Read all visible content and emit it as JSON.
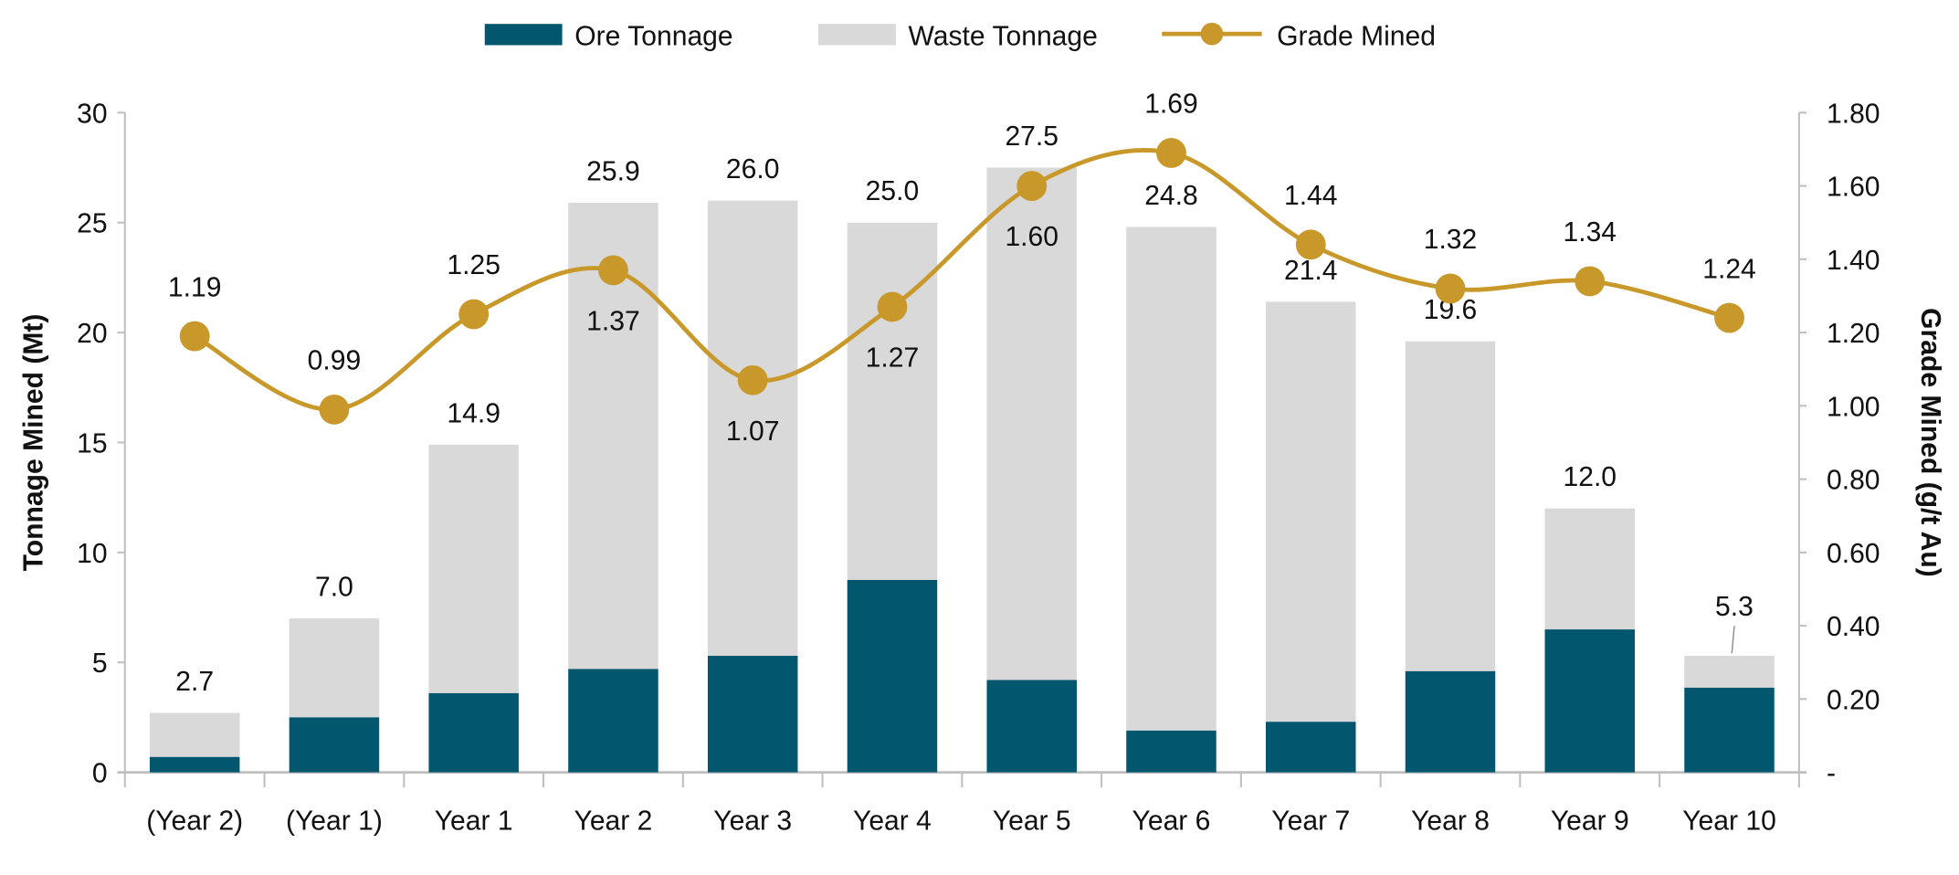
{
  "chart_data": {
    "type": "bar",
    "categories": [
      "(Year 2)",
      "(Year 1)",
      "Year 1",
      "Year 2",
      "Year 3",
      "Year 4",
      "Year 5",
      "Year 6",
      "Year 7",
      "Year 8",
      "Year 9",
      "Year 10"
    ],
    "series": [
      {
        "name": "Ore Tonnage",
        "type": "bar-stacked",
        "axis": "left",
        "color": "#02566e",
        "values": [
          0.7,
          2.5,
          3.6,
          4.7,
          5.3,
          8.75,
          4.2,
          1.9,
          2.3,
          4.6,
          6.5,
          3.85
        ]
      },
      {
        "name": "Waste Tonnage",
        "type": "bar-stacked",
        "axis": "left",
        "color": "#d9d9d9",
        "values": [
          2.0,
          4.5,
          11.3,
          21.2,
          20.7,
          16.25,
          23.3,
          22.9,
          19.1,
          15.0,
          5.5,
          1.45
        ]
      },
      {
        "name": "Grade Mined",
        "type": "line",
        "axis": "right",
        "color": "#c9982a",
        "values": [
          1.19,
          0.99,
          1.25,
          1.37,
          1.07,
          1.27,
          1.6,
          1.69,
          1.44,
          1.32,
          1.34,
          1.24
        ]
      }
    ],
    "total_labels": [
      "2.7",
      "7.0",
      "14.9",
      "25.9",
      "26.0",
      "25.0",
      "27.5",
      "24.8",
      "21.4",
      "19.6",
      "12.0",
      "5.3"
    ],
    "grade_labels": [
      "1.19",
      "0.99",
      "1.25",
      "1.37",
      "1.07",
      "1.27",
      "1.60",
      "1.69",
      "1.44",
      "1.32",
      "1.34",
      "1.24"
    ],
    "ylabel": "Tonnage Mined (Mt)",
    "y2label": "Grade Mined (g/t Au)",
    "ylim": [
      0,
      30
    ],
    "y2lim": [
      0,
      1.8
    ],
    "yticks": [
      "0",
      "5",
      "10",
      "15",
      "20",
      "25",
      "30"
    ],
    "y2ticks": [
      "-",
      "0.20",
      "0.40",
      "0.60",
      "0.80",
      "1.00",
      "1.20",
      "1.40",
      "1.60",
      "1.80"
    ],
    "grid": false,
    "legend": "top-center"
  }
}
